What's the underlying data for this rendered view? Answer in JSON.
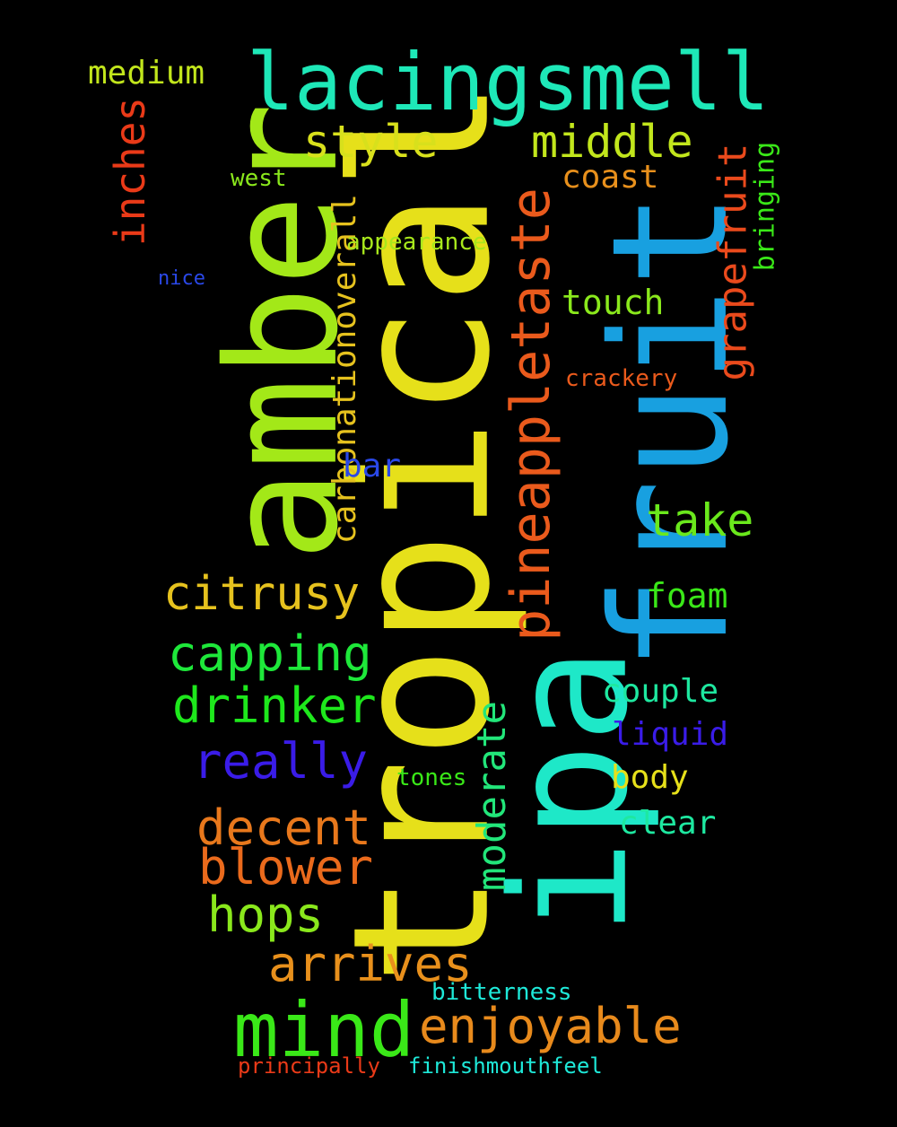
{
  "words": {
    "tropical": "tropical",
    "amber": "amber",
    "ipa": "ipa",
    "fruit": "fruit",
    "lacingsmell": "lacingsmell",
    "pineappletaste": "pineappletaste",
    "mind": "mind",
    "enjoyable": "enjoyable",
    "grapefruit": "grapefruit",
    "carbonationoverall": "carbonationoverall",
    "inches": "inches",
    "moderate": "moderate",
    "style": "style",
    "middle": "middle",
    "citrusy": "citrusy",
    "capping": "capping",
    "drinker": "drinker",
    "really": "really",
    "decent": "decent",
    "blower": "blower",
    "hops": "hops",
    "arrives": "arrives",
    "take": "take",
    "medium": "medium",
    "coast": "coast",
    "touch": "touch",
    "foam": "foam",
    "couple": "couple",
    "liquid": "liquid",
    "body": "body",
    "clear": "clear",
    "bar": "bar",
    "bringing": "bringing",
    "crackery": "crackery",
    "appearance": "appearance",
    "west": "west",
    "nice": "nice",
    "tones": "tones",
    "bitterness": "bitterness",
    "principally": "principally",
    "finishmouthfeel": "finishmouthfeel"
  },
  "colors": {
    "background": "#000000",
    "tropical": "#e6e01a",
    "amber": "#a3e818",
    "ipa": "#1ee8c8",
    "fruit": "#18a0e0",
    "lacingsmell": "#1ee8b8",
    "pineappletaste": "#ea5a1c",
    "mind": "#3ae818"
  }
}
